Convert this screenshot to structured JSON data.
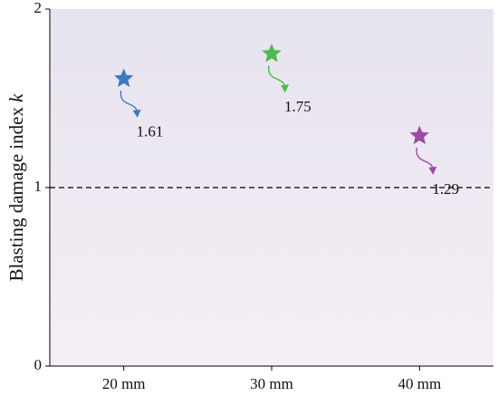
{
  "chart_data": {
    "type": "star-scatter",
    "y_label": "Blasting damage index",
    "y_label_symbol": "k",
    "categories": [
      "20 mm",
      "30 mm",
      "40 mm"
    ],
    "values": [
      1.61,
      1.75,
      1.29
    ],
    "colors": [
      "#3b7cc0",
      "#4dbb4d",
      "#9e4aa6"
    ],
    "ylim": [
      0,
      2
    ],
    "yticks": [
      0,
      1,
      2
    ],
    "reference_line": 1
  }
}
